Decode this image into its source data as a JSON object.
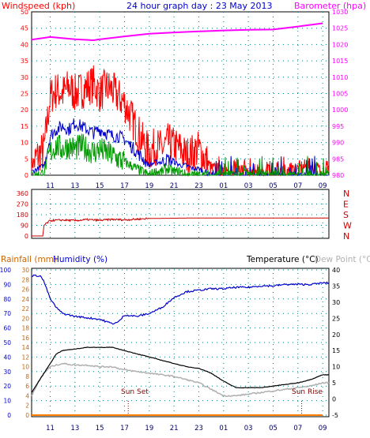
{
  "header": {
    "windspeed_label": "Windspeed (kph)",
    "title": "24 hour graph day : 23 May 2013",
    "barometer_label": "Barometer (hpa)"
  },
  "legend": {
    "rainfall_label": "Rainfall (mm)",
    "humidity_label": "Humidity (%)",
    "temperature_label": "Temperature (°C)",
    "dewpoint_label": "Dew Point (°C)"
  },
  "annotations": {
    "sunset": "Sun Set",
    "sunrise": "Sun Rise"
  },
  "colors": {
    "windspeed": "#ff0000",
    "gust": "#ff0000",
    "average": "#0000cc",
    "lull": "#009900",
    "barometer": "#ff00ff",
    "direction": "#cc0000",
    "temperature": "#000000",
    "dewpoint": "#b0b0b0",
    "humidity": "#0000cc",
    "rainfall": "#ff8000",
    "grid": "#008080",
    "rain_axis": "#cc6600",
    "humidity_axis": "#0000cc"
  },
  "chart_data": [
    {
      "type": "line",
      "panel": "wind-barometer",
      "x_ticks": [
        "11",
        "13",
        "15",
        "17",
        "19",
        "21",
        "23",
        "01",
        "03",
        "05",
        "07",
        "09"
      ],
      "ylim": [
        0,
        50
      ],
      "yticks": [
        0,
        5,
        10,
        15,
        20,
        25,
        30,
        35,
        40,
        45,
        50
      ],
      "y2lim": [
        980,
        1030
      ],
      "y2ticks": [
        980,
        985,
        990,
        995,
        1000,
        1005,
        1010,
        1015,
        1020,
        1025,
        1030
      ],
      "series": [
        {
          "name": "Windspeed (kph)",
          "hours": [
            9.5,
            10,
            10.5,
            11,
            11.5,
            12,
            12.5,
            13,
            13.5,
            14,
            14.5,
            15,
            15.5,
            16,
            16.5,
            17,
            17.5,
            18,
            18.5,
            19,
            19.5,
            20,
            20.5,
            21,
            21.5,
            22,
            22.5,
            23,
            23.5,
            24,
            25,
            26,
            27,
            28,
            29,
            30,
            31,
            32,
            33
          ],
          "values": [
            3,
            6,
            8,
            24,
            26,
            25,
            27,
            25,
            26,
            27,
            28,
            25,
            27,
            26,
            24,
            22,
            18,
            14,
            10,
            7,
            9,
            8,
            10,
            9,
            8,
            6,
            7,
            8,
            5,
            2,
            1,
            3,
            0,
            2,
            0,
            1,
            2,
            3,
            1
          ]
        },
        {
          "name": "Average",
          "hours": [
            9.5,
            10,
            10.5,
            11,
            11.5,
            12,
            12.5,
            13,
            13.5,
            14,
            14.5,
            15,
            15.5,
            16,
            16.5,
            17,
            17.5,
            18,
            18.5,
            19,
            19.5,
            20,
            20.5,
            21,
            21.5,
            22,
            22.5,
            23,
            23.5,
            24
          ],
          "values": [
            1,
            2,
            3,
            12,
            14,
            15,
            14,
            16,
            15,
            14,
            13,
            14,
            13,
            12,
            12,
            11,
            9,
            7,
            5,
            3,
            4,
            4,
            5,
            4,
            3,
            3,
            2,
            2,
            1,
            0
          ]
        },
        {
          "name": "Lull",
          "hours": [
            9.5,
            10,
            10.5,
            11,
            11.5,
            12,
            12.5,
            13,
            13.5,
            14,
            14.5,
            15,
            15.5,
            16,
            16.5,
            17,
            17.5,
            18,
            18.5,
            19,
            19.5,
            20,
            20.5,
            21,
            21.5,
            22,
            22.5,
            23,
            23.5,
            24
          ],
          "values": [
            0,
            0,
            1,
            7,
            9,
            8,
            9,
            8,
            9,
            8,
            7,
            8,
            7,
            6,
            5,
            4,
            3,
            2,
            1,
            0,
            1,
            1,
            2,
            1,
            1,
            0,
            0,
            0,
            0,
            0
          ]
        },
        {
          "name": "Barometer (hpa)",
          "axis": "y2",
          "hours": [
            9.5,
            11,
            13,
            14.5,
            15,
            17,
            19,
            21,
            23,
            25,
            27,
            29,
            31,
            33
          ],
          "values": [
            1021.5,
            1022.3,
            1021.6,
            1021.3,
            1021.6,
            1022.5,
            1023.3,
            1023.7,
            1024.0,
            1024.3,
            1024.5,
            1024.6,
            1025.5,
            1026.5
          ]
        }
      ]
    },
    {
      "type": "line",
      "panel": "wind-direction",
      "ylim": [
        0,
        360
      ],
      "yticks": [
        0,
        90,
        180,
        270,
        360
      ],
      "compass_labels": [
        "N",
        "W",
        "S",
        "E",
        "N"
      ],
      "series": [
        {
          "name": "Direction",
          "hours": [
            9.5,
            10.4,
            10.5,
            11,
            12,
            13,
            14,
            15,
            16,
            17,
            18,
            19,
            21,
            23,
            25,
            27,
            29,
            31,
            33
          ],
          "values": [
            0,
            0,
            90,
            130,
            135,
            130,
            138,
            132,
            140,
            136,
            142,
            148,
            150,
            152,
            152,
            152,
            152,
            152,
            152
          ]
        }
      ]
    },
    {
      "type": "line",
      "panel": "temp-humidity-rain",
      "humidity_ticks": [
        0,
        10,
        20,
        30,
        40,
        50,
        60,
        70,
        80,
        90,
        100
      ],
      "rain_ticks": [
        0,
        2,
        4,
        6,
        8,
        10,
        12,
        14,
        16,
        18,
        20,
        22,
        24,
        26,
        28,
        30
      ],
      "temp_ticks": [
        -5,
        0,
        5,
        10,
        15,
        20,
        25,
        30,
        35,
        40
      ],
      "rain_lim": [
        0,
        30
      ],
      "temp_lim": [
        -5,
        40
      ],
      "series": [
        {
          "name": "Humidity",
          "axis": "humidity",
          "hours": [
            9.5,
            10.2,
            10.5,
            11,
            11.5,
            12,
            13,
            14,
            15,
            16,
            16.5,
            17,
            18,
            19,
            20,
            21,
            22,
            23,
            24,
            25,
            26,
            27,
            28,
            29,
            30,
            31,
            32,
            33
          ],
          "values": [
            96,
            96,
            92,
            80,
            74,
            70,
            68,
            67,
            66,
            63,
            64,
            69,
            68,
            70,
            74,
            81,
            85,
            86,
            87,
            87,
            88,
            88,
            89,
            89,
            90,
            90,
            90,
            91
          ]
        },
        {
          "name": "Temperature",
          "axis": "temp",
          "hours": [
            9.5,
            10,
            10.5,
            11,
            11.5,
            12,
            13,
            14,
            15,
            16,
            17,
            18,
            19,
            20,
            21,
            22,
            23,
            24,
            25,
            26,
            27,
            28,
            29,
            30,
            31,
            32,
            33
          ],
          "values": [
            2,
            5,
            8,
            11,
            14,
            15,
            15.5,
            16,
            16,
            16,
            15,
            14,
            13,
            12,
            11,
            10,
            9.5,
            8,
            5.5,
            3.5,
            3.5,
            3.5,
            4,
            4.5,
            5,
            6,
            7.5
          ]
        },
        {
          "name": "Dew Point",
          "axis": "temp",
          "hours": [
            9.5,
            10,
            10.5,
            11,
            11.5,
            12,
            13,
            14,
            15,
            16,
            17,
            18,
            19,
            20,
            21,
            22,
            23,
            24,
            25,
            26,
            27,
            28,
            29,
            30,
            31,
            32,
            33
          ],
          "values": [
            1,
            5,
            8,
            10,
            10.5,
            11,
            10.5,
            10.5,
            10,
            10,
            9,
            8.5,
            8,
            7.5,
            7,
            6,
            5,
            3,
            1,
            1,
            1.5,
            2,
            2.5,
            3,
            3.5,
            4,
            5
          ]
        },
        {
          "name": "Rainfall",
          "axis": "rain",
          "hours": [
            9.5,
            33
          ],
          "values": [
            0,
            0
          ]
        }
      ]
    }
  ]
}
